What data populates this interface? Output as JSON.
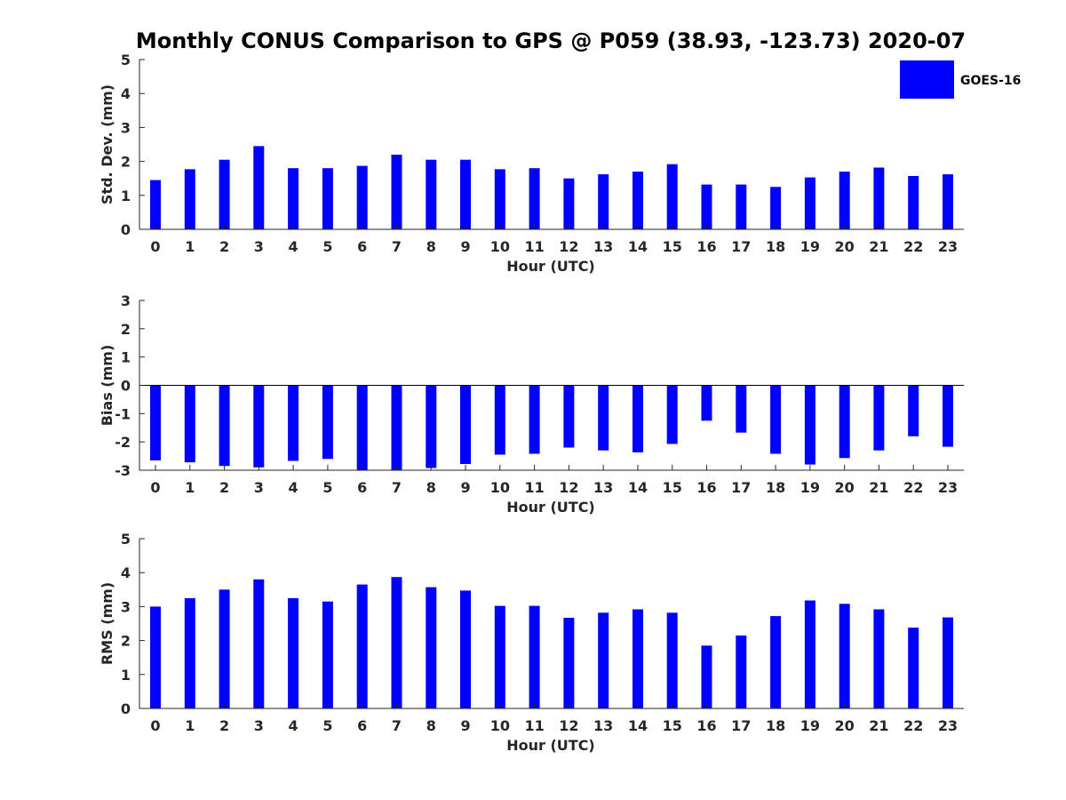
{
  "title": "Monthly CONUS Comparison to GPS @ P059 (38.93, -123.73) 2020-07",
  "legend": {
    "label": "GOES-16",
    "color": "#0000ff",
    "placement": "top-right"
  },
  "chart_data": [
    {
      "type": "bar",
      "series_name": "GOES-16",
      "color": "#0000ff",
      "xlabel": "Hour (UTC)",
      "ylabel": "Std. Dev. (mm)",
      "ylim": [
        0,
        5
      ],
      "yticks": [
        0,
        1,
        2,
        3,
        4,
        5
      ],
      "categories": [
        "0",
        "1",
        "2",
        "3",
        "4",
        "5",
        "6",
        "7",
        "8",
        "9",
        "10",
        "11",
        "12",
        "13",
        "14",
        "15",
        "16",
        "17",
        "18",
        "19",
        "20",
        "21",
        "22",
        "23"
      ],
      "values": [
        1.45,
        1.77,
        2.05,
        2.45,
        1.8,
        1.8,
        1.87,
        2.2,
        2.05,
        2.05,
        1.77,
        1.8,
        1.5,
        1.62,
        1.7,
        1.92,
        1.32,
        1.32,
        1.25,
        1.53,
        1.7,
        1.82,
        1.57,
        1.62
      ],
      "grid": false
    },
    {
      "type": "bar",
      "series_name": "GOES-16",
      "color": "#0000ff",
      "xlabel": "Hour (UTC)",
      "ylabel": "Bias (mm)",
      "ylim": [
        -3,
        3
      ],
      "yticks": [
        -3,
        -2,
        -1,
        0,
        1,
        2,
        3
      ],
      "categories": [
        "0",
        "1",
        "2",
        "3",
        "4",
        "5",
        "6",
        "7",
        "8",
        "9",
        "10",
        "11",
        "12",
        "13",
        "14",
        "15",
        "16",
        "17",
        "18",
        "19",
        "20",
        "21",
        "22",
        "23"
      ],
      "values": [
        -2.65,
        -2.72,
        -2.85,
        -2.9,
        -2.67,
        -2.6,
        -3.0,
        -3.0,
        -2.92,
        -2.78,
        -2.45,
        -2.42,
        -2.2,
        -2.3,
        -2.37,
        -2.07,
        -1.25,
        -1.67,
        -2.42,
        -2.8,
        -2.57,
        -2.3,
        -1.8,
        -2.17
      ],
      "grid": false
    },
    {
      "type": "bar",
      "series_name": "GOES-16",
      "color": "#0000ff",
      "xlabel": "Hour (UTC)",
      "ylabel": "RMS (mm)",
      "ylim": [
        0,
        5
      ],
      "yticks": [
        0,
        1,
        2,
        3,
        4,
        5
      ],
      "categories": [
        "0",
        "1",
        "2",
        "3",
        "4",
        "5",
        "6",
        "7",
        "8",
        "9",
        "10",
        "11",
        "12",
        "13",
        "14",
        "15",
        "16",
        "17",
        "18",
        "19",
        "20",
        "21",
        "22",
        "23"
      ],
      "values": [
        3.0,
        3.25,
        3.5,
        3.8,
        3.25,
        3.15,
        3.65,
        3.87,
        3.57,
        3.47,
        3.02,
        3.02,
        2.67,
        2.82,
        2.92,
        2.82,
        1.85,
        2.15,
        2.72,
        3.18,
        3.08,
        2.92,
        2.38,
        2.68
      ],
      "grid": false
    }
  ]
}
